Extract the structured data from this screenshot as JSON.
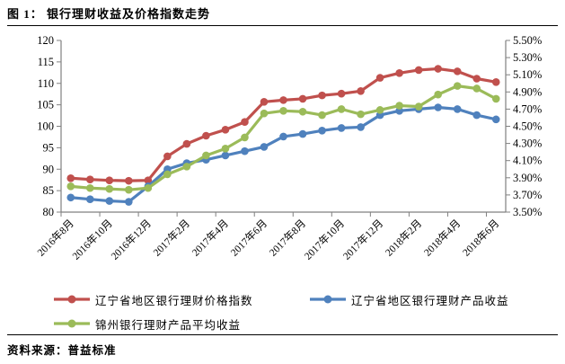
{
  "page": {
    "title": "图 1： 银行理财收益及价格指数走势",
    "source_label": "资料来源：普益标准"
  },
  "chart_data": {
    "type": "line",
    "title": "银行理财收益及价格指数走势",
    "x_tick_labels": [
      "2016年8月",
      "2016年10月",
      "2016年12月",
      "2017年2月",
      "2017年4月",
      "2017年6月",
      "2017年8月",
      "2017年10月",
      "2017年12月",
      "2018年2月",
      "2018年4月",
      "2018年6月"
    ],
    "points_per_label": 2,
    "n_points": 23,
    "grid": "off",
    "legend_position": "bottom",
    "left_axis": {
      "min": 80,
      "max": 120,
      "step": 5,
      "ticks": [
        "80",
        "85",
        "90",
        "95",
        "100",
        "105",
        "110",
        "115",
        "120"
      ]
    },
    "right_axis": {
      "min": 3.5,
      "max": 5.5,
      "step": 0.2,
      "suffix": "%",
      "ticks": [
        "3.50%",
        "3.70%",
        "3.90%",
        "4.10%",
        "4.30%",
        "4.50%",
        "4.70%",
        "4.90%",
        "5.10%",
        "5.30%",
        "5.50%"
      ]
    },
    "series": [
      {
        "name": "辽宁省地区银行理财价格指数",
        "color": "#C0504D",
        "axis": "left",
        "values": [
          87.9,
          87.6,
          87.4,
          87.3,
          87.4,
          93.0,
          95.9,
          97.8,
          99.2,
          101.0,
          105.7,
          106.1,
          106.4,
          107.2,
          107.6,
          108.2,
          111.3,
          112.4,
          113.1,
          113.4,
          112.8,
          111.1,
          110.3
        ]
      },
      {
        "name": "辽宁省地区银行理财产品收益",
        "color": "#4F81BD",
        "axis": "right",
        "values": [
          3.67,
          3.65,
          3.63,
          3.62,
          3.8,
          4.0,
          4.07,
          4.11,
          4.16,
          4.21,
          4.26,
          4.38,
          4.41,
          4.45,
          4.48,
          4.49,
          4.63,
          4.68,
          4.7,
          4.72,
          4.7,
          4.63,
          4.58
        ]
      },
      {
        "name": "锦州银行理财产品平均收益",
        "color": "#9BBB59",
        "axis": "right",
        "values": [
          3.8,
          3.78,
          3.77,
          3.76,
          3.78,
          3.94,
          4.03,
          4.16,
          4.24,
          4.37,
          4.65,
          4.68,
          4.67,
          4.63,
          4.7,
          4.64,
          4.69,
          4.74,
          4.73,
          4.87,
          4.97,
          4.94,
          4.82
        ]
      }
    ],
    "axis_color": "#808080"
  }
}
